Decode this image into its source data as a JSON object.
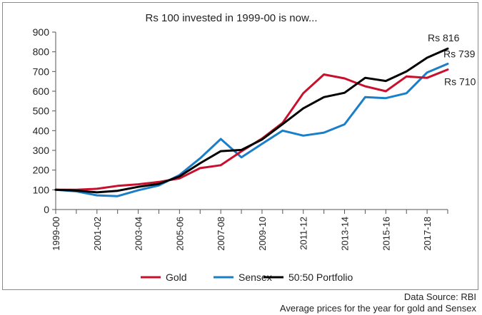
{
  "chart_data": {
    "type": "line",
    "title": "Rs 100 invested in 1999-00 is now...",
    "xlabel": "",
    "ylabel": "",
    "ylim": [
      0,
      900
    ],
    "yticks": [
      0,
      100,
      200,
      300,
      400,
      500,
      600,
      700,
      800,
      900
    ],
    "x": [
      "1999-00",
      "2000-01",
      "2001-02",
      "2002-03",
      "2003-04",
      "2004-05",
      "2005-06",
      "2006-07",
      "2007-08",
      "2008-09",
      "2009-10",
      "2010-11",
      "2011-12",
      "2012-13",
      "2013-14",
      "2014-15",
      "2015-16",
      "2016-17",
      "2017-18",
      "2018-19"
    ],
    "x_tick_labels": [
      "1999-00",
      "2001-02",
      "2003-04",
      "2005-06",
      "2007-08",
      "2009-10",
      "2011-12",
      "2013-14",
      "2015-16",
      "2017-18"
    ],
    "series": [
      {
        "name": "Gold",
        "color": "#c8102e",
        "values": [
          100,
          100,
          105,
          120,
          128,
          140,
          158,
          210,
          225,
          295,
          360,
          440,
          590,
          685,
          665,
          625,
          600,
          675,
          668,
          710
        ]
      },
      {
        "name": "Sensex",
        "color": "#1a7fc8",
        "values": [
          100,
          92,
          72,
          68,
          98,
          122,
          175,
          260,
          358,
          265,
          333,
          400,
          375,
          390,
          432,
          570,
          565,
          590,
          695,
          739
        ]
      },
      {
        "name": "50:50 Portfolio",
        "color": "#000000",
        "values": [
          100,
          96,
          87,
          95,
          115,
          130,
          168,
          235,
          296,
          302,
          355,
          433,
          513,
          570,
          592,
          668,
          652,
          700,
          770,
          816
        ]
      }
    ],
    "end_labels": [
      "Rs 816",
      "Rs 739",
      "Rs 710"
    ],
    "grid": false,
    "legend_position": "bottom"
  },
  "footer": {
    "source_line": "Data Source: RBI",
    "note_line": "Average prices for the year for gold and Sensex"
  }
}
